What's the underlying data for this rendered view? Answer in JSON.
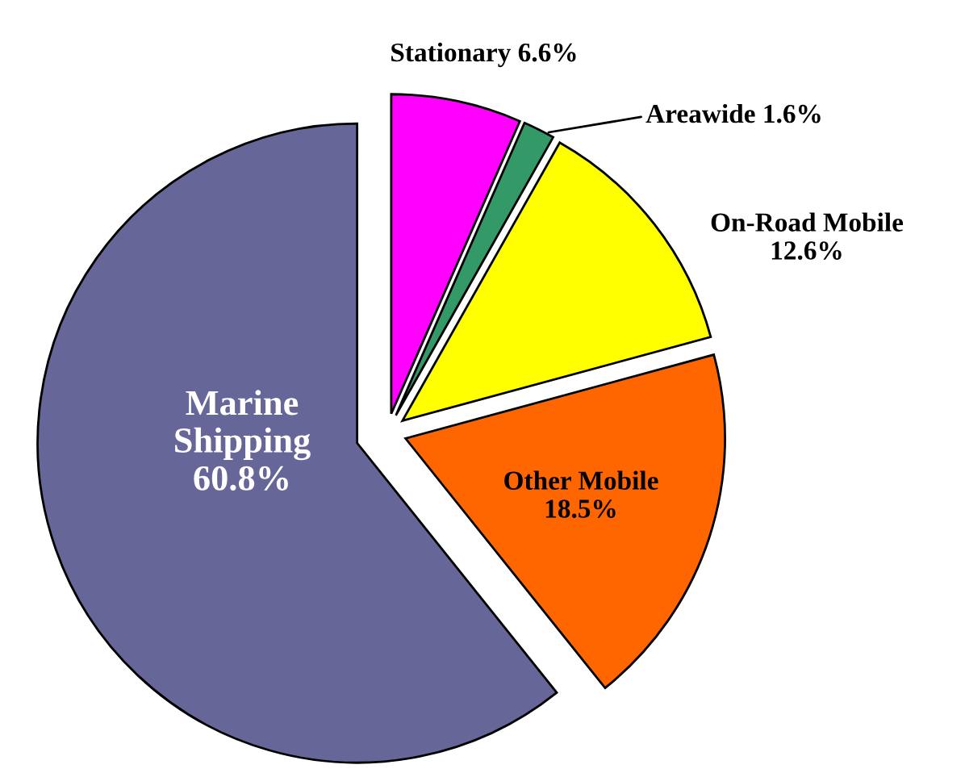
{
  "chart_data": {
    "type": "pie",
    "categories": [
      "Stationary",
      "Areawide",
      "On-Road Mobile",
      "Other Mobile",
      "Marine Shipping"
    ],
    "values": [
      6.6,
      1.6,
      12.6,
      18.5,
      60.8
    ],
    "colors": [
      "#ff00ff",
      "#339966",
      "#ffff00",
      "#ff6600",
      "#666699"
    ],
    "value_labels": [
      "6.6%",
      "1.6%",
      "12.6%",
      "18.5%",
      "60.8%"
    ]
  }
}
